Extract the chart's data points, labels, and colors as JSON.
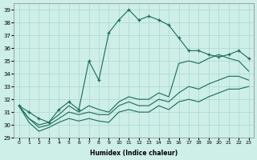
{
  "xlabel": "Humidex (Indice chaleur)",
  "bg_color": "#ceeee8",
  "grid_color": "#aad8d0",
  "line_color": "#1a6b5a",
  "xlim": [
    -0.5,
    23.5
  ],
  "ylim": [
    29,
    39.5
  ],
  "yticks": [
    29,
    30,
    31,
    32,
    33,
    34,
    35,
    36,
    37,
    38,
    39
  ],
  "xticks": [
    0,
    1,
    2,
    3,
    4,
    5,
    6,
    7,
    8,
    9,
    10,
    11,
    12,
    13,
    14,
    15,
    16,
    17,
    18,
    19,
    20,
    21,
    22,
    23
  ],
  "series1": [
    31.5,
    31.0,
    30.5,
    30.2,
    31.2,
    31.8,
    31.2,
    35.0,
    33.5,
    37.2,
    38.2,
    39.0,
    38.2,
    38.5,
    38.2,
    37.8,
    36.8,
    35.8,
    35.8,
    35.5,
    35.3,
    35.5,
    35.8,
    35.2
  ],
  "series_upper": [
    31.5,
    30.5,
    30.0,
    30.2,
    30.8,
    31.5,
    31.0,
    31.5,
    31.2,
    31.0,
    31.8,
    32.2,
    32.0,
    32.0,
    32.5,
    32.2,
    34.8,
    35.0,
    34.8,
    35.2,
    35.5,
    35.2,
    35.0,
    34.2
  ],
  "series_mid": [
    31.5,
    30.5,
    29.8,
    30.0,
    30.5,
    31.0,
    30.8,
    31.0,
    30.8,
    30.8,
    31.5,
    31.8,
    31.5,
    31.5,
    32.0,
    31.8,
    32.5,
    33.0,
    32.8,
    33.2,
    33.5,
    33.8,
    33.8,
    33.5
  ],
  "series_lower": [
    31.5,
    30.2,
    29.5,
    29.8,
    30.2,
    30.5,
    30.3,
    30.5,
    30.3,
    30.2,
    31.0,
    31.2,
    31.0,
    31.0,
    31.5,
    31.2,
    31.8,
    32.0,
    31.8,
    32.2,
    32.5,
    32.8,
    32.8,
    33.0
  ]
}
